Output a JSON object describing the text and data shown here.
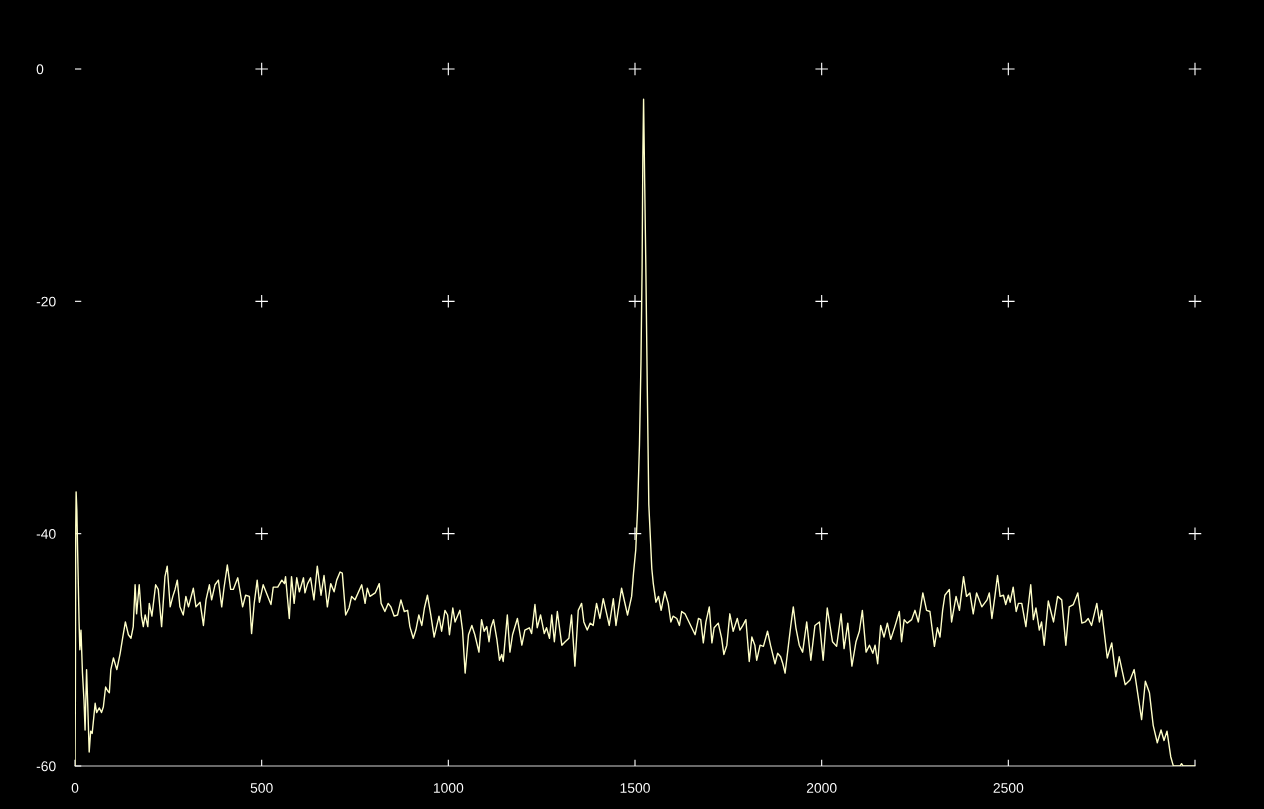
{
  "chart_data": {
    "type": "line",
    "color": "#ffffc8",
    "marker": "none",
    "line_style": "solid",
    "xlim": [
      0,
      3000
    ],
    "ylim": [
      -60,
      0
    ],
    "xticks": [
      0,
      500,
      1000,
      1500,
      2000,
      2500,
      {
        "value": 3000,
        "label": null
      }
    ],
    "yticks": [
      -60,
      -40,
      -20,
      0
    ],
    "x": [
      0,
      1,
      2,
      3,
      5,
      7,
      11,
      13,
      16,
      20,
      24,
      27,
      31,
      34,
      38,
      42,
      46,
      54,
      58,
      65,
      71,
      76,
      82,
      87,
      92,
      96,
      103,
      112,
      121,
      128,
      135,
      143,
      150,
      156,
      161,
      165,
      172,
      178,
      183,
      188,
      195,
      199,
      206,
      216,
      223,
      232,
      241,
      247,
      255,
      262,
      268,
      274,
      281,
      290,
      297,
      304,
      317,
      324,
      335,
      344,
      351,
      360,
      366,
      375,
      384,
      393,
      399,
      408,
      417,
      424,
      436,
      449,
      457,
      467,
      473,
      480,
      488,
      494,
      504,
      525,
      531,
      543,
      554,
      561,
      564,
      574,
      580,
      587,
      594,
      601,
      612,
      616,
      623,
      631,
      640,
      649,
      659,
      667,
      676,
      685,
      694,
      701,
      710,
      716,
      725,
      734,
      741,
      750,
      768,
      777,
      783,
      790,
      804,
      811,
      815,
      820,
      830,
      839,
      846,
      855,
      864,
      873,
      882,
      891,
      897,
      906,
      913,
      921,
      929,
      936,
      944,
      953,
      962,
      975,
      982,
      991,
      998,
      1003,
      1012,
      1018,
      1031,
      1038,
      1045,
      1054,
      1063,
      1071,
      1082,
      1089,
      1096,
      1103,
      1109,
      1114,
      1121,
      1130,
      1137,
      1143,
      1147,
      1158,
      1165,
      1172,
      1185,
      1197,
      1205,
      1217,
      1223,
      1232,
      1238,
      1247,
      1257,
      1263,
      1271,
      1277,
      1284,
      1292,
      1304,
      1313,
      1323,
      1330,
      1339,
      1348,
      1357,
      1363,
      1372,
      1380,
      1388,
      1397,
      1406,
      1415,
      1431,
      1442,
      1449,
      1464,
      1480,
      1491,
      1496,
      1502,
      1507,
      1512,
      1516,
      1519,
      1521,
      1523,
      1526,
      1529,
      1533,
      1537,
      1545,
      1549,
      1556,
      1563,
      1570,
      1580,
      1589,
      1596,
      1602,
      1612,
      1619,
      1625,
      1634,
      1640,
      1652,
      1661,
      1670,
      1676,
      1683,
      1690,
      1699,
      1706,
      1712,
      1723,
      1732,
      1738,
      1746,
      1754,
      1763,
      1774,
      1781,
      1789,
      1797,
      1806,
      1813,
      1821,
      1826,
      1835,
      1844,
      1855,
      1863,
      1875,
      1882,
      1890,
      1896,
      1902,
      1911,
      1917,
      1924,
      1931,
      1940,
      1949,
      1960,
      1971,
      1982,
      1994,
      2004,
      2015,
      2029,
      2040,
      2052,
      2060,
      2070,
      2081,
      2092,
      2101,
      2109,
      2119,
      2128,
      2137,
      2143,
      2150,
      2158,
      2167,
      2176,
      2185,
      2196,
      2208,
      2214,
      2221,
      2229,
      2241,
      2250,
      2259,
      2271,
      2281,
      2290,
      2302,
      2310,
      2317,
      2324,
      2330,
      2342,
      2348,
      2360,
      2369,
      2380,
      2388,
      2397,
      2406,
      2415,
      2429,
      2443,
      2449,
      2456,
      2464,
      2471,
      2478,
      2487,
      2493,
      2500,
      2505,
      2513,
      2521,
      2527,
      2536,
      2547,
      2560,
      2567,
      2574,
      2583,
      2589,
      2596,
      2607,
      2621,
      2632,
      2643,
      2654,
      2663,
      2674,
      2686,
      2697,
      2706,
      2714,
      2723,
      2737,
      2744,
      2750,
      2765,
      2777,
      2788,
      2797,
      2813,
      2826,
      2837,
      2857,
      2867,
      2878,
      2888,
      2899,
      2909,
      2917,
      2925,
      2935,
      2942,
      2960,
      2964,
      2968,
      3000
    ],
    "values": [
      -60,
      -54,
      -39.5,
      -36.4,
      -38,
      -41.4,
      -47.7,
      -50,
      -48.3,
      -52,
      -54.3,
      -56.9,
      -51.7,
      -54.6,
      -58.8,
      -57,
      -57.2,
      -54.6,
      -55.4,
      -55,
      -55.4,
      -54.9,
      -53.2,
      -53.5,
      -53.7,
      -51.7,
      -50.7,
      -51.7,
      -50.3,
      -48.9,
      -47.6,
      -48.7,
      -49,
      -48,
      -44.4,
      -46.9,
      -44.4,
      -47.1,
      -48,
      -47,
      -48,
      -46,
      -47.1,
      -44.4,
      -44.8,
      -48,
      -43.7,
      -42.8,
      -46.3,
      -45.4,
      -44.8,
      -44,
      -46.3,
      -47,
      -45.4,
      -46.3,
      -44.7,
      -46.3,
      -45.9,
      -47.9,
      -45.7,
      -44.4,
      -45.7,
      -44.4,
      -44,
      -46.3,
      -44.7,
      -42.7,
      -44.8,
      -44.8,
      -43.8,
      -46.3,
      -45.3,
      -45.4,
      -48.6,
      -46,
      -44,
      -45.9,
      -44.4,
      -46.1,
      -44.6,
      -44.6,
      -44,
      -44.3,
      -43.7,
      -47.3,
      -43.7,
      -46,
      -43.8,
      -45,
      -43.8,
      -45.1,
      -44.3,
      -43.8,
      -45.7,
      -42.8,
      -45.3,
      -43.6,
      -46.3,
      -44.3,
      -45,
      -44,
      -43.3,
      -43.4,
      -47,
      -46.4,
      -45.4,
      -45.7,
      -44.4,
      -46,
      -44.7,
      -45.4,
      -45.1,
      -44.6,
      -44.3,
      -46,
      -46.7,
      -46,
      -46.3,
      -47.1,
      -47,
      -45.7,
      -46.7,
      -46.6,
      -48,
      -49,
      -48.3,
      -47,
      -47.9,
      -46.4,
      -45.3,
      -47,
      -48.9,
      -47.1,
      -48.4,
      -46.6,
      -47,
      -48.7,
      -46.4,
      -47.6,
      -46.6,
      -48.3,
      -52,
      -48.7,
      -47.9,
      -48.7,
      -50.2,
      -47.4,
      -48.4,
      -48,
      -49.3,
      -48.1,
      -47.4,
      -49.1,
      -50.9,
      -50.4,
      -51,
      -47,
      -50.2,
      -48.7,
      -47.3,
      -49.6,
      -48.3,
      -48.1,
      -48.6,
      -46.1,
      -48.1,
      -47,
      -48.6,
      -48.1,
      -49,
      -47,
      -49.3,
      -46.7,
      -49.6,
      -49.3,
      -49,
      -47,
      -51.4,
      -46.6,
      -46,
      -47.6,
      -48.3,
      -47.7,
      -47.9,
      -46,
      -47.3,
      -45.6,
      -47.9,
      -45.6,
      -47.9,
      -44.7,
      -47,
      -45.4,
      -43.4,
      -41.4,
      -37.8,
      -32.3,
      -25.2,
      -17.1,
      -7.6,
      -2.6,
      -9.9,
      -16.9,
      -27.7,
      -37.5,
      -43,
      -44.3,
      -45.9,
      -45.4,
      -46.6,
      -45,
      -46,
      -47.6,
      -47.1,
      -47.3,
      -47.9,
      -46.7,
      -46.9,
      -47.3,
      -48.1,
      -48.7,
      -47.3,
      -47.4,
      -49.4,
      -47.6,
      -46.3,
      -49.4,
      -48.1,
      -47.7,
      -49,
      -50.4,
      -49.6,
      -46.9,
      -48.4,
      -47.3,
      -48.3,
      -47.9,
      -47.4,
      -51,
      -48.9,
      -49.6,
      -50.9,
      -49.6,
      -49.7,
      -48.4,
      -49.6,
      -51.2,
      -50.3,
      -50.6,
      -51.2,
      -52,
      -49.6,
      -48,
      -46.3,
      -48.1,
      -49.6,
      -50.2,
      -47.6,
      -50.9,
      -47.9,
      -47.6,
      -50.9,
      -46.4,
      -49.3,
      -49.7,
      -46.9,
      -49.9,
      -47.7,
      -51.4,
      -49.3,
      -48.4,
      -46.6,
      -50.2,
      -49.6,
      -50.3,
      -49.6,
      -51.2,
      -47.9,
      -48.9,
      -47.7,
      -49.1,
      -48,
      -46.7,
      -49.3,
      -47.4,
      -47.7,
      -47.4,
      -46.6,
      -47.6,
      -45.1,
      -46.6,
      -46.7,
      -49.7,
      -48.1,
      -48.9,
      -46.6,
      -45.3,
      -44.8,
      -47.6,
      -45.4,
      -46.6,
      -43.7,
      -45.4,
      -45.1,
      -46.9,
      -45.1,
      -46.3,
      -45.7,
      -45.1,
      -47.3,
      -45.4,
      -43.6,
      -45.4,
      -45.3,
      -46.1,
      -45.3,
      -45.9,
      -44.6,
      -46.7,
      -46,
      -46,
      -48,
      -44.4,
      -47.4,
      -46.4,
      -48.3,
      -47.6,
      -49.6,
      -45.8,
      -47.6,
      -45.4,
      -45.7,
      -49.6,
      -46.3,
      -46.1,
      -45.1,
      -47.7,
      -47.6,
      -47.3,
      -47.9,
      -46,
      -47.6,
      -46.6,
      -50.7,
      -49.4,
      -52.3,
      -50.6,
      -53,
      -52.6,
      -51.7,
      -56,
      -52.7,
      -53.7,
      -56.5,
      -58,
      -56.9,
      -57.8,
      -57,
      -59.2,
      -60,
      -60,
      -59.8,
      -60,
      -60
    ]
  }
}
